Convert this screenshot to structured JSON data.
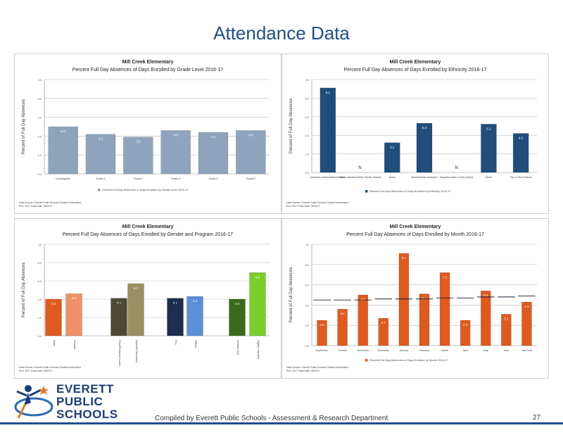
{
  "slide": {
    "title": "Attendance Data",
    "footer": "Compiled  by Everett Public Schools - Assessment & Research Department",
    "page_number": "27",
    "logo_lines": [
      "EVERETT",
      "PUBLIC",
      "SCHOOLS"
    ]
  },
  "chart_data": [
    {
      "type": "bar",
      "title": "Mill Creek Elementary",
      "subtitle": "Percent Full Day Absences of Days Enrolled by Grade Level 2016-17",
      "ylabel": "Percent of Full Day Absences",
      "ylim": [
        0,
        10
      ],
      "yticks": [
        "0.0",
        "2.0",
        "4.0",
        "6.0",
        "8.0",
        "10"
      ],
      "categories": [
        "Kindergarten",
        "Grade 1",
        "Grade 2",
        "Grade 3",
        "Grade 4",
        "Grade 5"
      ],
      "values": [
        5.0,
        4.2,
        3.9,
        4.6,
        4.4,
        4.6
      ],
      "data_labels": [
        "5.0",
        "4.2",
        "3.9",
        "4.6",
        "4.4",
        "4.6"
      ],
      "legend": "Percent Full Day Absences of Days Enrolled by Grade Level 2016-17",
      "source": [
        "Data Source: Everett Public Schools Student Information",
        "Run: 2017 Data Date: 08/2017"
      ],
      "color": "#8ea4bd"
    },
    {
      "type": "bar",
      "title": "Mill Creek Elementary",
      "subtitle": "Percent Full Day Absences of Days Enrolled by Ethnicity 2016-17",
      "ylabel": "Percent of Full Day Absences",
      "ylim": [
        0,
        10
      ],
      "yticks": [
        "0.0",
        "2.0",
        "4.0",
        "6.0",
        "8.0",
        "10"
      ],
      "categories": [
        "American Indian/Alaskan Native",
        "Native Hawaiian/Other Pacific Islander",
        "Asian",
        "Black/African American",
        "Hispanic/Latino of any race(s)",
        "White",
        "Two or More Races"
      ],
      "values": [
        9.1,
        null,
        3.2,
        5.3,
        null,
        5.2,
        4.2
      ],
      "data_labels": [
        "9.1",
        "N",
        "3.2",
        "5.3",
        "N",
        "5.2",
        "4.2"
      ],
      "legend": "Percent Full Day Absences of Days Enrolled by Ethnicity 2016-17",
      "source": [
        "Data Source: Everett Public Schools Student Information",
        "Run: 2017 Data Date: 08/2017"
      ],
      "color": "#1f4e7d"
    },
    {
      "type": "bar",
      "title": "Mill Creek Elementary",
      "subtitle": "Percent Full Day Absences of Days Enrolled by Gender and Program 2016-17",
      "ylabel": "Percent of Full Day Absences",
      "ylim": [
        0,
        10
      ],
      "yticks": [
        "0.0",
        "2.0",
        "4.0",
        "6.0",
        "8.0",
        "10"
      ],
      "categories": [
        "Male",
        "Female",
        "Free/Reduced Lunch",
        "Special Education",
        "ELL",
        "Gifted",
        "Section 504",
        "Highly Capable"
      ],
      "values": [
        4.0,
        4.6,
        4.1,
        5.7,
        4.1,
        4.3,
        4.0,
        6.9
      ],
      "data_labels": [
        "4.0",
        "4.6",
        "4.1",
        "5.7",
        "4.1",
        "4.3",
        "4.0",
        "6.9"
      ],
      "colors": [
        "#e05a1e",
        "#f0906a",
        "#4d4a34",
        "#9a9062",
        "#1c2e4f",
        "#5b8fd6",
        "#3a6a1a",
        "#7acf2a"
      ],
      "source": [
        "Data Source: Everett Public Schools Student Information",
        "Run: 2017 Data Date: 08/2017"
      ]
    },
    {
      "type": "bar",
      "title": "Mill Creek Elementary",
      "subtitle": "Percent Full Day Absences of Days Enrolled by Month 2016-17",
      "ylabel": "Percent of Full Day Absences",
      "ylim": [
        0,
        10
      ],
      "yticks": [
        "0.0",
        "2.0",
        "4.0",
        "6.0",
        "8.0",
        "10"
      ],
      "categories": [
        "September",
        "October",
        "November",
        "December",
        "January",
        "February",
        "March",
        "April",
        "May",
        "June",
        "Year Total"
      ],
      "values": [
        2.5,
        3.6,
        5.0,
        2.7,
        9.1,
        5.1,
        7.2,
        2.5,
        5.4,
        3.1,
        4.3
      ],
      "data_labels": [
        "2.5",
        "3.6",
        "5.0",
        "2.7",
        "9.1",
        "5.1",
        "7.2",
        "2.5",
        "5.4",
        "3.1",
        "4.3"
      ],
      "reference_line": [
        4.5,
        4.5,
        4.5,
        4.6,
        4.6,
        4.6,
        4.7,
        4.7,
        4.8,
        4.8,
        4.9
      ],
      "legend": "Percent Full Day Absences of Days Enrolled by Month 2016-17",
      "source": [
        "Data Source: Everett Public Schools Student Information",
        "Run: 2017 Data Date: 08/2017"
      ],
      "color": "#e05a1e"
    }
  ]
}
